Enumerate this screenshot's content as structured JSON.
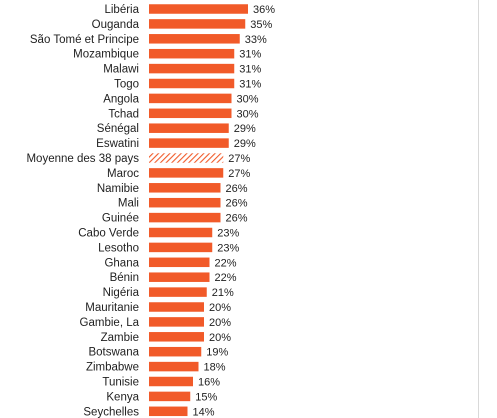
{
  "chart_data": {
    "type": "bar",
    "orientation": "horizontal",
    "bar_color": "#f15a29",
    "average_hatch_color": "#f15a29",
    "categories": [
      "Libéria",
      "Ouganda",
      "São Tomé et Principe",
      "Mozambique",
      "Malawi",
      "Togo",
      "Angola",
      "Tchad",
      "Sénégal",
      "Eswatini",
      "Moyenne des 38 pays",
      "Maroc",
      "Namibie",
      "Mali",
      "Guinée",
      "Cabo Verde",
      "Lesotho",
      "Ghana",
      "Bénin",
      "Nigéria",
      "Mauritanie",
      "Gambie, La",
      "Zambie",
      "Botswana",
      "Zimbabwe",
      "Tunisie",
      "Kenya",
      "Seychelles"
    ],
    "values": [
      36,
      35,
      33,
      31,
      31,
      31,
      30,
      30,
      29,
      29,
      27,
      27,
      26,
      26,
      26,
      23,
      23,
      22,
      22,
      21,
      20,
      20,
      20,
      19,
      18,
      16,
      15,
      14
    ],
    "value_labels": [
      "36%",
      "35%",
      "33%",
      "31%",
      "31%",
      "31%",
      "30%",
      "30%",
      "29%",
      "29%",
      "27%",
      "27%",
      "26%",
      "26%",
      "26%",
      "23%",
      "23%",
      "22%",
      "22%",
      "21%",
      "20%",
      "20%",
      "20%",
      "19%",
      "18%",
      "16%",
      "15%",
      "14%"
    ],
    "highlight_category": "Moyenne des 38 pays",
    "title": "",
    "xlabel": "",
    "ylabel": ""
  }
}
